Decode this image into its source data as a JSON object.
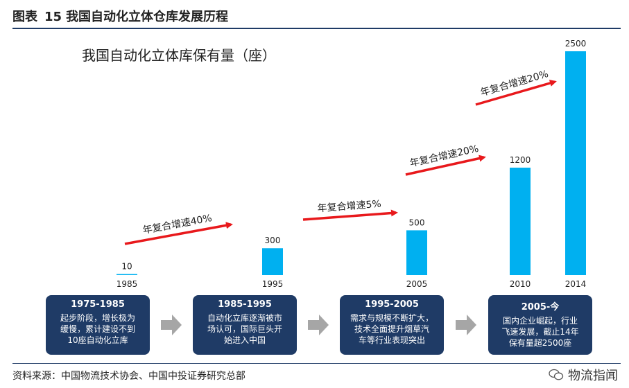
{
  "header": {
    "label": "图表",
    "number": "15",
    "title": "我国自动化立体仓库发展历程"
  },
  "chart_data": {
    "type": "bar",
    "title": "我国自动化立体库保有量（座）",
    "categories": [
      "1985",
      "1995",
      "2005",
      "2010",
      "2014"
    ],
    "values": [
      10,
      300,
      500,
      1200,
      2500
    ],
    "value_labels": [
      "10",
      "300",
      "500",
      "1200",
      "2500"
    ],
    "ylim": [
      0,
      2500
    ],
    "bar_color": "#00b0f0",
    "annotations": [
      {
        "text": "年复合增速40%",
        "from": "1985",
        "to": "1995"
      },
      {
        "text": "年复合增速5%",
        "from": "1995",
        "to": "2005"
      },
      {
        "text": "年复合增速20%",
        "from": "2005",
        "to": "2010"
      },
      {
        "text": "年复合增速20%",
        "from": "2010",
        "to": "2014"
      }
    ],
    "arrow_color": "#e8191c"
  },
  "phases": [
    {
      "period": "1975-1985",
      "desc": [
        "起步阶段，增长极为",
        "缓慢，累计建设不到",
        "10座自动化立库"
      ]
    },
    {
      "period": "1985-1995",
      "desc": [
        "自动化立库逐渐被市",
        "场认可，国际巨头开",
        "始进入中国"
      ]
    },
    {
      "period": "1995-2005",
      "desc": [
        "需求与规模不断扩大，",
        "技术全面提升烟草汽",
        "车等行业表现突出"
      ]
    },
    {
      "period": "2005-今",
      "desc": [
        "国内企业崛起，行业",
        "飞速发展，截止14年",
        "保有量超2500座"
      ]
    }
  ],
  "footer": {
    "source": "资料来源：中国物流技术协会、中国中投证券研究总部",
    "brand": "物流指闻"
  },
  "colors": {
    "navy": "#1f3b66",
    "bar": "#00b0f0",
    "arrow": "#e8191c",
    "chevron": "#a6a6a6"
  }
}
